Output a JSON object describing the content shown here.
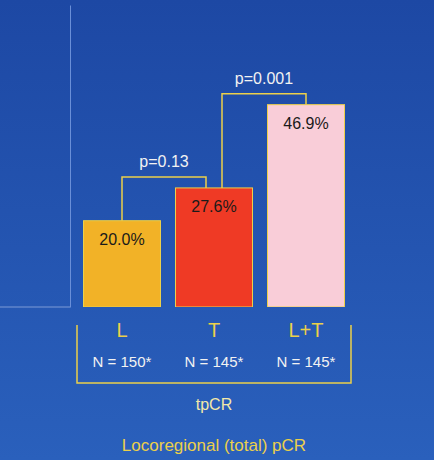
{
  "chart_data": {
    "type": "bar",
    "title": "Locoregional (total) pCR",
    "group_label": "tpCR",
    "categories": [
      "L",
      "T",
      "L+T"
    ],
    "n_labels": [
      "N = 150*",
      "N = 145*",
      "N = 145*"
    ],
    "values": [
      20.0,
      27.6,
      46.9
    ],
    "value_labels": [
      "20.0%",
      "27.6%",
      "46.9%"
    ],
    "colors": [
      "#f2b227",
      "#ef3a25",
      "#f9cdd8"
    ],
    "data_labels": true,
    "tick_labels": "x",
    "ylim": [
      0,
      70
    ],
    "comparisons": [
      {
        "between": [
          "L",
          "T"
        ],
        "label": "p=0.13"
      },
      {
        "between": [
          "T",
          "L+T"
        ],
        "label": "p=0.001"
      }
    ]
  }
}
